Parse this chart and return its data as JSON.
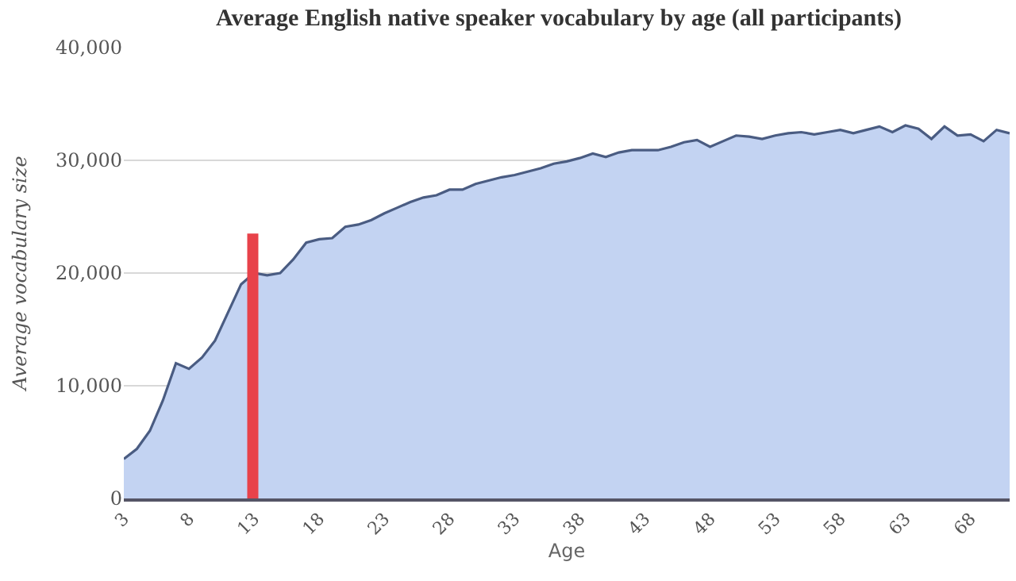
{
  "chart_data": {
    "type": "area",
    "title": "Average English native speaker vocabulary by age (all participants)",
    "xlabel": "Age",
    "ylabel": "Average vocabulary size",
    "xlim": [
      3,
      71
    ],
    "xticks": [
      3,
      8,
      13,
      18,
      23,
      28,
      33,
      38,
      43,
      48,
      53,
      58,
      63,
      68
    ],
    "ylim": [
      0,
      40000
    ],
    "yticks": [
      {
        "value": 0,
        "label": "0"
      },
      {
        "value": 10000,
        "label": "10,000"
      },
      {
        "value": 20000,
        "label": "20,000"
      },
      {
        "value": 30000,
        "label": "30,000"
      },
      {
        "value": 40000,
        "label": "40,000"
      }
    ],
    "grid": "y",
    "marker": "none",
    "series": [
      {
        "color": "#4a5c82",
        "x": [
          3,
          4,
          5,
          6,
          7,
          8,
          9,
          10,
          11,
          12,
          13,
          14,
          15,
          16,
          17,
          18,
          19,
          20,
          21,
          22,
          23,
          24,
          25,
          26,
          27,
          28,
          29,
          30,
          31,
          32,
          33,
          34,
          35,
          36,
          37,
          38,
          39,
          40,
          41,
          42,
          43,
          44,
          45,
          46,
          47,
          48,
          49,
          50,
          51,
          52,
          53,
          54,
          55,
          56,
          57,
          58,
          59,
          60,
          61,
          62,
          63,
          64,
          65,
          66,
          67,
          68,
          69,
          70,
          71
        ],
        "values": [
          3500,
          4400,
          6000,
          8700,
          12000,
          11500,
          12500,
          14000,
          16500,
          19000,
          20000,
          19800,
          20000,
          21200,
          22700,
          23000,
          23100,
          24100,
          24300,
          24700,
          25300,
          25800,
          26300,
          26700,
          26900,
          27400,
          27400,
          27900,
          28200,
          28500,
          28700,
          29000,
          29300,
          29700,
          29900,
          30200,
          30600,
          30300,
          30700,
          30900,
          30900,
          30900,
          31200,
          31600,
          31800,
          31200,
          31700,
          32200,
          32100,
          31900,
          32200,
          32400,
          32500,
          32300,
          32500,
          32700,
          32400,
          32700,
          33000,
          32500,
          33100,
          32800,
          31900,
          33000,
          32200,
          32300,
          31700,
          32700,
          32400
        ]
      },
      {
        "type": "line",
        "color": "#e8424a",
        "x": [
          12.9,
          12.9
        ],
        "values": [
          0,
          23500
        ]
      }
    ]
  }
}
